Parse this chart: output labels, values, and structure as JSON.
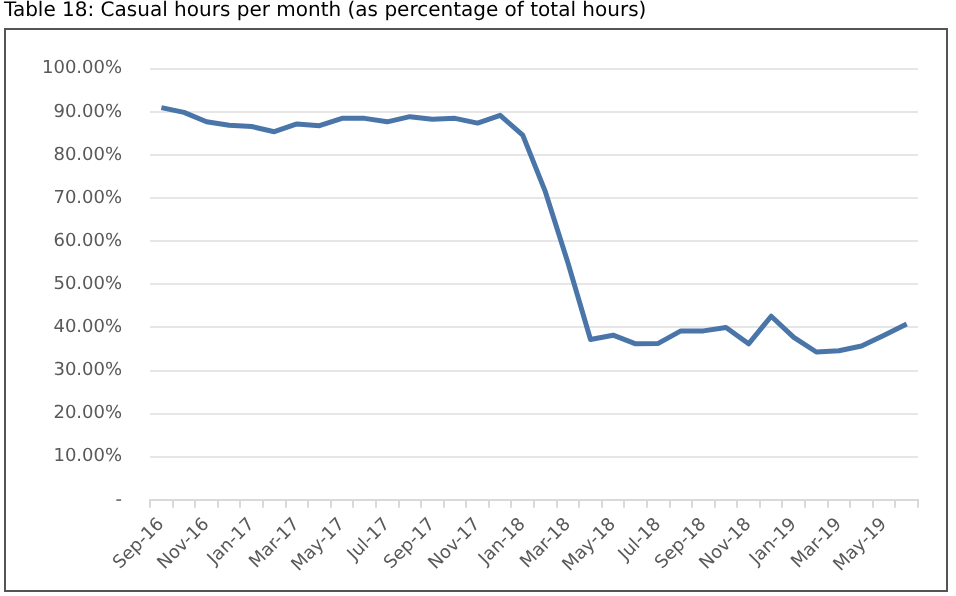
{
  "chart_data": {
    "type": "line",
    "title": "Table 18: Casual hours per month (as percentage of total hours)",
    "categories": [
      "Sep-16",
      null,
      "Nov-16",
      null,
      "Jan-17",
      null,
      "Mar-17",
      null,
      "May-17",
      null,
      "Jul-17",
      null,
      "Sep-17",
      null,
      "Nov-17",
      null,
      "Jan-18",
      null,
      "Mar-18",
      null,
      "May-18",
      null,
      "Jul-18",
      null,
      "Sep-18",
      null,
      "Nov-18",
      null,
      "Jan-19",
      null,
      "Mar-19",
      null,
      "May-19",
      null
    ],
    "series": [
      {
        "color": "#4a75a8",
        "values": [
          91.0,
          89.9,
          87.7,
          86.9,
          86.6,
          85.4,
          87.2,
          86.8,
          88.5,
          88.5,
          87.7,
          88.9,
          88.3,
          88.5,
          87.4,
          89.2,
          84.6,
          71.5,
          55,
          37.2,
          38.2,
          36.2,
          36.3,
          39.2,
          39.2,
          40.0,
          36.2,
          42.6,
          37.7,
          34.3,
          34.6,
          35.7,
          38.2,
          40.8
        ]
      }
    ],
    "ylim": [
      0,
      100
    ],
    "yticks": [
      {
        "value": 0,
        "label": "-"
      },
      {
        "value": 10,
        "label": "10.00%"
      },
      {
        "value": 20,
        "label": "20.00%"
      },
      {
        "value": 30,
        "label": "30.00%"
      },
      {
        "value": 40,
        "label": "40.00%"
      },
      {
        "value": 50,
        "label": "50.00%"
      },
      {
        "value": 60,
        "label": "60.00%"
      },
      {
        "value": 70,
        "label": "70.00%"
      },
      {
        "value": 80,
        "label": "80.00%"
      },
      {
        "value": 90,
        "label": "90.00%"
      },
      {
        "value": 100,
        "label": "100.00%"
      }
    ],
    "grid": "y",
    "legend": false,
    "marker": "none",
    "line_style": "solid"
  }
}
